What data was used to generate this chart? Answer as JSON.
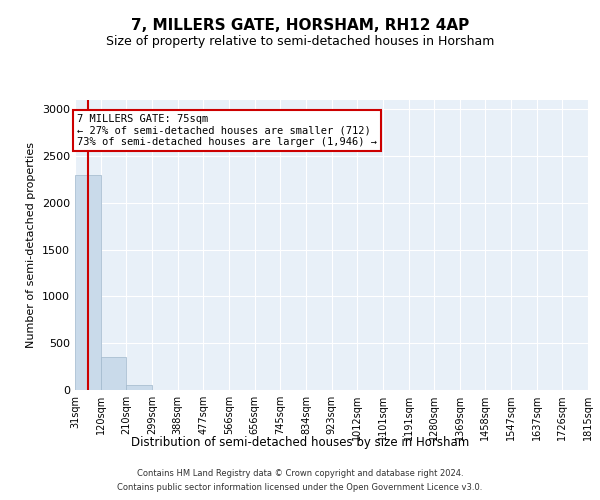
{
  "title": "7, MILLERS GATE, HORSHAM, RH12 4AP",
  "subtitle": "Size of property relative to semi-detached houses in Horsham",
  "xlabel": "Distribution of semi-detached houses by size in Horsham",
  "ylabel": "Number of semi-detached properties",
  "bin_edges": [
    31,
    120,
    210,
    299,
    388,
    477,
    566,
    656,
    745,
    834,
    923,
    1012,
    1101,
    1191,
    1280,
    1369,
    1458,
    1547,
    1637,
    1726,
    1815
  ],
  "bar_heights": [
    2300,
    350,
    50,
    0,
    0,
    0,
    0,
    0,
    0,
    0,
    0,
    0,
    0,
    0,
    0,
    0,
    0,
    0,
    0,
    0
  ],
  "bar_color": "#c9daea",
  "bar_edge_color": "#a0b8cc",
  "property_sqm": 75,
  "property_line_color": "#cc0000",
  "ylim": [
    0,
    3100
  ],
  "yticks": [
    0,
    500,
    1000,
    1500,
    2000,
    2500,
    3000
  ],
  "annotation_title": "7 MILLERS GATE: 75sqm",
  "annotation_line1": "← 27% of semi-detached houses are smaller (712)",
  "annotation_line2": "73% of semi-detached houses are larger (1,946) →",
  "annotation_box_color": "#ffffff",
  "annotation_border_color": "#cc0000",
  "footer_line1": "Contains HM Land Registry data © Crown copyright and database right 2024.",
  "footer_line2": "Contains public sector information licensed under the Open Government Licence v3.0.",
  "background_color": "#e8f0f8",
  "grid_color": "#ffffff",
  "title_fontsize": 11,
  "subtitle_fontsize": 9,
  "tick_label_fontsize": 7,
  "ylabel_fontsize": 8,
  "xlabel_fontsize": 8.5,
  "footer_fontsize": 6,
  "annotation_fontsize": 7.5
}
